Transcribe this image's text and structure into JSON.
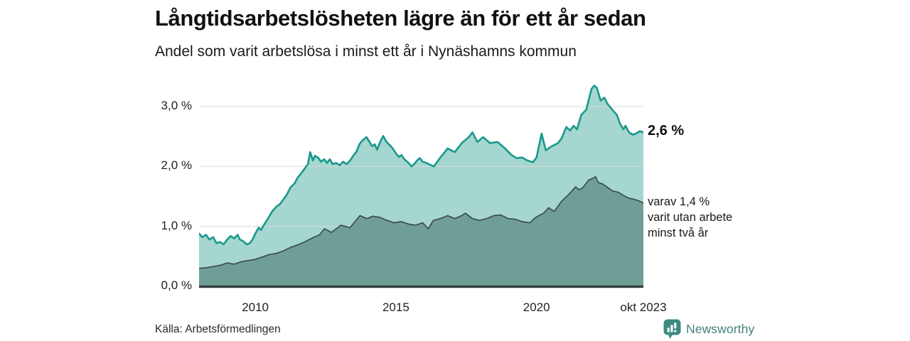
{
  "header": {
    "title": "Långtidsarbetslösheten lägre än för ett år sedan",
    "subtitle": "Andel som varit arbetslösa i minst ett år i Nynäshamns kommun"
  },
  "chart_data": {
    "type": "area",
    "variant": "overlapping-subset",
    "title": "Långtidsarbetslösheten lägre än för ett år sedan",
    "subtitle": "Andel som varit arbetslösa i minst ett år i Nynäshamns kommun",
    "xlabel": "",
    "ylabel": "",
    "unit": "%",
    "grid": true,
    "x_axis": {
      "range": [
        2008.0,
        2023.8
      ],
      "ticks": [
        {
          "label": "2010",
          "year": 2010
        },
        {
          "label": "2015",
          "year": 2015
        },
        {
          "label": "2020",
          "year": 2020
        },
        {
          "label": "okt 2023",
          "year": 2023.8
        }
      ]
    },
    "y_axis": {
      "range": [
        0,
        3.5
      ],
      "ticks": [
        {
          "label": "0,0 %",
          "value": 0
        },
        {
          "label": "1,0 %",
          "value": 1
        },
        {
          "label": "2,0 %",
          "value": 2
        },
        {
          "label": "3,0 %",
          "value": 3
        }
      ]
    },
    "series": [
      {
        "name": "Andel arbetslösa minst ett år",
        "end_value_label": "2,6 %",
        "line_color": "#18998b",
        "fill_color": "#a5d6cf",
        "x": [
          2008.0,
          2008.12,
          2008.25,
          2008.37,
          2008.5,
          2008.62,
          2008.75,
          2008.87,
          2009.0,
          2009.12,
          2009.25,
          2009.37,
          2009.45,
          2009.55,
          2009.7,
          2009.8,
          2009.9,
          2010.0,
          2010.12,
          2010.2,
          2010.3,
          2010.45,
          2010.6,
          2010.75,
          2010.87,
          2011.0,
          2011.12,
          2011.25,
          2011.4,
          2011.5,
          2011.62,
          2011.75,
          2011.87,
          2011.95,
          2012.05,
          2012.12,
          2012.25,
          2012.33,
          2012.45,
          2012.55,
          2012.65,
          2012.75,
          2012.87,
          2013.0,
          2013.12,
          2013.25,
          2013.37,
          2013.5,
          2013.6,
          2013.7,
          2013.8,
          2013.95,
          2014.05,
          2014.15,
          2014.25,
          2014.33,
          2014.45,
          2014.55,
          2014.65,
          2014.75,
          2014.87,
          2015.0,
          2015.1,
          2015.2,
          2015.3,
          2015.45,
          2015.55,
          2015.65,
          2015.75,
          2015.85,
          2015.95,
          2016.08,
          2016.35,
          2016.58,
          2016.84,
          2017.09,
          2017.34,
          2017.59,
          2017.72,
          2017.9,
          2018.1,
          2018.35,
          2018.61,
          2018.86,
          2019.11,
          2019.29,
          2019.49,
          2019.67,
          2019.87,
          2020.0,
          2020.18,
          2020.33,
          2020.51,
          2020.76,
          2020.89,
          2021.06,
          2021.19,
          2021.32,
          2021.44,
          2021.59,
          2021.77,
          2021.95,
          2022.05,
          2022.15,
          2022.28,
          2022.41,
          2022.53,
          2022.71,
          2022.86,
          2022.96,
          2023.09,
          2023.16,
          2023.29,
          2023.42,
          2023.54,
          2023.67,
          2023.8
        ],
        "values": [
          0.88,
          0.82,
          0.86,
          0.78,
          0.82,
          0.72,
          0.74,
          0.7,
          0.78,
          0.84,
          0.8,
          0.86,
          0.78,
          0.76,
          0.7,
          0.72,
          0.78,
          0.88,
          0.98,
          0.94,
          1.02,
          1.13,
          1.25,
          1.33,
          1.37,
          1.45,
          1.53,
          1.65,
          1.72,
          1.81,
          1.88,
          1.96,
          2.04,
          2.24,
          2.1,
          2.18,
          2.14,
          2.08,
          2.12,
          2.06,
          2.12,
          2.04,
          2.06,
          2.02,
          2.08,
          2.04,
          2.1,
          2.19,
          2.25,
          2.37,
          2.43,
          2.49,
          2.42,
          2.34,
          2.37,
          2.28,
          2.42,
          2.51,
          2.42,
          2.37,
          2.31,
          2.22,
          2.16,
          2.19,
          2.12,
          2.06,
          2.0,
          2.04,
          2.1,
          2.14,
          2.08,
          2.06,
          2.0,
          2.15,
          2.3,
          2.24,
          2.39,
          2.49,
          2.57,
          2.41,
          2.49,
          2.39,
          2.41,
          2.31,
          2.19,
          2.14,
          2.15,
          2.1,
          2.07,
          2.15,
          2.55,
          2.27,
          2.33,
          2.39,
          2.47,
          2.66,
          2.6,
          2.68,
          2.62,
          2.86,
          2.95,
          3.29,
          3.35,
          3.31,
          3.1,
          3.15,
          3.04,
          2.94,
          2.86,
          2.72,
          2.62,
          2.68,
          2.57,
          2.53,
          2.55,
          2.59,
          2.57
        ]
      },
      {
        "name": "varav utan arbete minst två år",
        "end_value_label": "varav 1,4 %",
        "line_color": "#3d4e4b",
        "fill_color": "#6f9e97",
        "x": [
          2008.0,
          2008.25,
          2008.5,
          2008.75,
          2009.0,
          2009.25,
          2009.5,
          2009.75,
          2010.0,
          2010.25,
          2010.5,
          2010.75,
          2011.0,
          2011.25,
          2011.5,
          2011.75,
          2012.0,
          2012.28,
          2012.46,
          2012.71,
          2013.04,
          2013.37,
          2013.72,
          2013.97,
          2014.18,
          2014.43,
          2014.68,
          2014.94,
          2015.19,
          2015.44,
          2015.7,
          2015.95,
          2016.15,
          2016.33,
          2016.58,
          2016.84,
          2017.09,
          2017.34,
          2017.47,
          2017.72,
          2017.97,
          2018.23,
          2018.48,
          2018.73,
          2018.99,
          2019.24,
          2019.49,
          2019.75,
          2020.0,
          2020.25,
          2020.43,
          2020.63,
          2020.89,
          2021.14,
          2021.39,
          2021.52,
          2021.65,
          2021.85,
          2022.03,
          2022.1,
          2022.2,
          2022.35,
          2022.53,
          2022.71,
          2022.91,
          2023.11,
          2023.29,
          2023.49,
          2023.67,
          2023.8
        ],
        "values": [
          0.3,
          0.31,
          0.33,
          0.35,
          0.39,
          0.37,
          0.41,
          0.43,
          0.45,
          0.49,
          0.53,
          0.55,
          0.59,
          0.65,
          0.69,
          0.74,
          0.8,
          0.86,
          0.96,
          0.9,
          1.02,
          0.98,
          1.18,
          1.13,
          1.17,
          1.15,
          1.1,
          1.06,
          1.08,
          1.04,
          1.02,
          1.06,
          0.96,
          1.1,
          1.13,
          1.18,
          1.13,
          1.18,
          1.22,
          1.13,
          1.1,
          1.13,
          1.18,
          1.19,
          1.13,
          1.12,
          1.08,
          1.06,
          1.16,
          1.22,
          1.31,
          1.25,
          1.42,
          1.53,
          1.66,
          1.61,
          1.65,
          1.77,
          1.81,
          1.83,
          1.73,
          1.71,
          1.65,
          1.59,
          1.57,
          1.51,
          1.47,
          1.45,
          1.42,
          1.39
        ]
      }
    ],
    "grid_color": "#d9dcdc",
    "axis_line_color": "#343e3d"
  },
  "annotations": {
    "total_label": "2,6 %",
    "subset_lines": [
      "varav 1,4 %",
      "varit utan arbete",
      "minst två år"
    ]
  },
  "footer": {
    "source": "Källa: Arbetsförmedlingen",
    "brand": "Newsworthy"
  },
  "colors": {
    "accent_teal": "#18998b",
    "light_fill": "#a5d6cf",
    "dark_fill": "#6f9e97",
    "dark_line": "#3d4e4b",
    "brand_teal": "#3e8a82"
  }
}
